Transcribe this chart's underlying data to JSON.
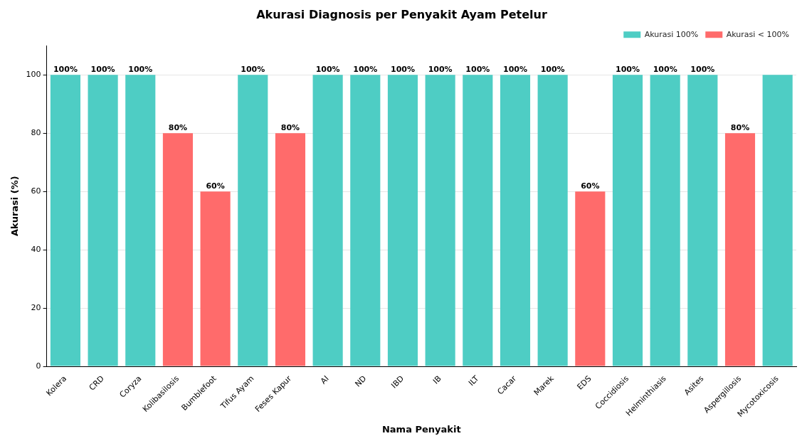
{
  "chart_data": {
    "type": "bar",
    "title": "Akurasi Diagnosis per Penyakit Ayam Petelur",
    "xlabel": "Nama Penyakit",
    "ylabel": "Akurasi (%)",
    "categories": [
      "Kolera",
      "CRD",
      "Coryza",
      "Kolibasilosis",
      "Bumblefoot",
      "Tifus Ayam",
      "Feses Kapur",
      "AI",
      "ND",
      "IBD",
      "IB",
      "ILT",
      "Cacar",
      "Marek",
      "EDS",
      "Coccidiosis",
      "Helminthiasis",
      "Asites",
      "Aspergillosis",
      "Mycotoxicosis"
    ],
    "stacked": true,
    "series": [
      {
        "name": "Akurasi 100%",
        "color": "#4ecdc4",
        "values": [
          100,
          100,
          100,
          null,
          null,
          100,
          null,
          100,
          100,
          100,
          100,
          100,
          100,
          100,
          null,
          100,
          100,
          100,
          null,
          100
        ],
        "value_labels": [
          "100%",
          "100%",
          "100%",
          null,
          null,
          "100%",
          null,
          "100%",
          "100%",
          "100%",
          "100%",
          "100%",
          "100%",
          "100%",
          null,
          "100%",
          "100%",
          "100%",
          null,
          null
        ]
      },
      {
        "name": "Akurasi < 100%",
        "color": "#ff6b6b",
        "values": [
          null,
          null,
          null,
          80,
          60,
          null,
          80,
          null,
          null,
          null,
          null,
          null,
          null,
          null,
          60,
          null,
          null,
          null,
          80,
          null
        ],
        "value_labels": [
          null,
          null,
          null,
          "80%",
          "60%",
          null,
          "80%",
          null,
          null,
          null,
          null,
          null,
          null,
          null,
          "60%",
          null,
          null,
          null,
          "80%",
          null
        ]
      }
    ],
    "ylim": [
      0,
      110
    ],
    "yticks": [
      0,
      20,
      40,
      60,
      80,
      100
    ],
    "grid": "y",
    "legend": "top right"
  }
}
